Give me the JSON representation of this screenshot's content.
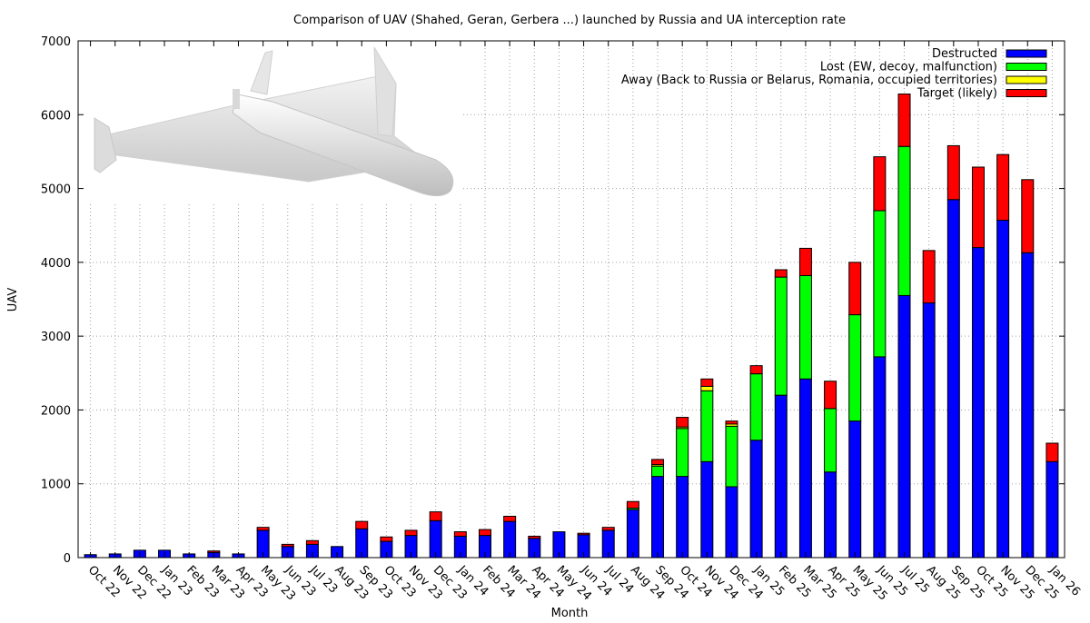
{
  "chart_data": {
    "type": "bar",
    "stacked": true,
    "title": "Comparison of UAV (Shahed, Geran, Gerbera ...) launched by Russia and UA interception rate",
    "xlabel": "Month",
    "ylabel": "UAV",
    "ylim": [
      0,
      7000
    ],
    "yticks": [
      "0",
      "1000",
      "2000",
      "3000",
      "4000",
      "5000",
      "6000",
      "7000"
    ],
    "grid": true,
    "legend_position": "top-right",
    "categories": [
      "Oct 22",
      "Nov 22",
      "Dec 22",
      "Jan 23",
      "Feb 23",
      "Mar 23",
      "Apr 23",
      "May 23",
      "Jun 23",
      "Jul 23",
      "Aug 23",
      "Sep 23",
      "Oct 23",
      "Nov 23",
      "Dec 23",
      "Jan 24",
      "Feb 24",
      "Mar 24",
      "Apr 24",
      "May 24",
      "Jun 24",
      "Jul 24",
      "Aug 24",
      "Sep 24",
      "Oct 24",
      "Nov 24",
      "Dec 24",
      "Jan 25",
      "Feb 25",
      "Mar 25",
      "Apr 25",
      "May 25",
      "Jun 25",
      "Jul 25",
      "Aug 25",
      "Sep 25",
      "Oct 25",
      "Nov 25",
      "Dec 25",
      "Jan 26"
    ],
    "series": [
      {
        "name": "Destructed",
        "color": "#0000ff",
        "values": [
          40,
          50,
          100,
          100,
          50,
          70,
          50,
          370,
          150,
          180,
          150,
          390,
          220,
          300,
          500,
          290,
          300,
          490,
          260,
          350,
          310,
          370,
          650,
          1100,
          1100,
          1300,
          960,
          1590,
          2200,
          2420,
          1160,
          1850,
          2720,
          3550,
          3450,
          4850,
          4200,
          4570,
          4130,
          1300
        ]
      },
      {
        "name": "Lost (EW, decoy, malfunction)",
        "color": "#00ff00",
        "values": [
          0,
          0,
          0,
          0,
          0,
          0,
          0,
          0,
          0,
          0,
          0,
          0,
          0,
          0,
          0,
          0,
          0,
          0,
          0,
          0,
          0,
          0,
          20,
          140,
          650,
          960,
          820,
          900,
          1600,
          1400,
          860,
          1440,
          1980,
          2020,
          0,
          0,
          0,
          0,
          0,
          0
        ]
      },
      {
        "name": "Away (Back to Russia or Belarus, Romania, occupied territories)",
        "color": "#ffff00",
        "values": [
          0,
          0,
          0,
          0,
          0,
          0,
          0,
          0,
          0,
          0,
          0,
          0,
          0,
          0,
          0,
          0,
          0,
          0,
          0,
          0,
          0,
          0,
          0,
          20,
          20,
          60,
          30,
          0,
          0,
          0,
          0,
          0,
          0,
          0,
          0,
          0,
          0,
          0,
          0,
          0
        ]
      },
      {
        "name": "Target (likely)",
        "color": "#ff0000",
        "values": [
          0,
          0,
          0,
          0,
          0,
          20,
          0,
          40,
          30,
          50,
          0,
          100,
          60,
          70,
          120,
          60,
          80,
          70,
          30,
          0,
          20,
          40,
          90,
          70,
          130,
          100,
          40,
          110,
          100,
          370,
          370,
          710,
          730,
          710,
          710,
          730,
          1090,
          890,
          990,
          250
        ]
      }
    ]
  }
}
